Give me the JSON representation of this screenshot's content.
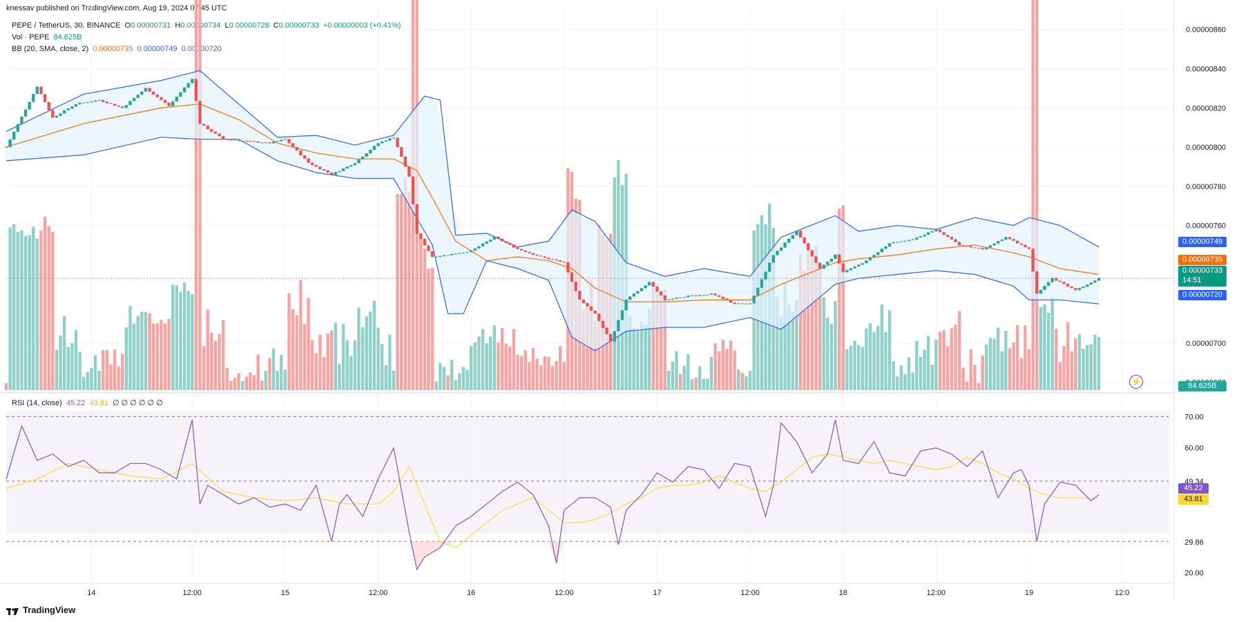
{
  "header": {
    "published": "knessav published on TradingView.com, Aug 19, 2024 07:45 UTC"
  },
  "legend": {
    "symbol": "PEPE / TetherUS, 30, BINANCE",
    "o_label": "O",
    "o_value": "0.00000731",
    "h_label": "H",
    "h_value": "0.00000734",
    "l_label": "L",
    "l_value": "0.00000728",
    "c_label": "C",
    "c_value": "0.00000733",
    "change": "+0.00000003 (+0.41%)",
    "vol_label": "Vol · PEPE",
    "vol_value": "84.625B",
    "bb_label": "BB (20, SMA, close, 2)",
    "bb_basis": "0.00000735",
    "bb_upper": "0.00000749",
    "bb_lower": "0.00000720",
    "rsi_label": "RSI (14, close)",
    "rsi_value": "45.22",
    "rsi_ma": "43.81",
    "rsi_extra": "∅ ∅ ∅ ∅ ∅ ∅"
  },
  "price_tags": {
    "upper": "0.00000749",
    "basis": "0.00000735",
    "last": "0.00000733",
    "countdown": "14:51",
    "lower": "0.00000720",
    "volume": "84.625B"
  },
  "rsi_tags": {
    "rsi": "45.22",
    "ma": "43.81"
  },
  "branding": {
    "logo_text": "TradingView"
  },
  "colors": {
    "up": "#26a69a",
    "down": "#ef5350",
    "bb_band": "#2962ff",
    "bb_basis": "#ff6d00",
    "bb_fill": "#e3f2fd",
    "rsi": "#7e57c2",
    "rsi_ma": "#fdd835",
    "vol_up": "#8fd0c8",
    "vol_down": "#f6a3a1"
  },
  "chart_data": [
    {
      "type": "candlestick",
      "title": "PEPE / TetherUS, 30, BINANCE",
      "y_axis_ticks": [
        "0.00000860",
        "0.00000840",
        "0.00000820",
        "0.00000800",
        "0.00000780",
        "0.00000760",
        "0.00000700",
        "0.00000680"
      ],
      "ylim": [
        6.76e-06,
        8.68e-06
      ],
      "x_axis_ticks": [
        "14",
        "12:00",
        "15",
        "12:00",
        "16",
        "12:00",
        "17",
        "12:00",
        "18",
        "12:00",
        "19",
        "12:0"
      ],
      "xlim": [
        0,
        300
      ],
      "x_tick_positions": [
        22,
        48,
        72,
        96,
        120,
        144,
        168,
        192,
        216,
        240,
        264,
        288
      ],
      "series": [
        {
          "name": "Price (close)",
          "x": [
            0,
            8,
            12,
            18,
            24,
            30,
            36,
            42,
            48,
            50,
            56,
            62,
            68,
            72,
            78,
            84,
            90,
            96,
            100,
            104,
            106,
            110,
            114,
            120,
            126,
            132,
            138,
            144,
            148,
            152,
            156,
            160,
            166,
            170,
            176,
            182,
            188,
            192,
            198,
            204,
            210,
            214,
            216,
            222,
            228,
            234,
            240,
            246,
            252,
            258,
            264,
            266,
            270,
            276,
            282
          ],
          "y": [
            8e-06,
            8.31e-06,
            8.15e-06,
            8.22e-06,
            8.24e-06,
            8.2e-06,
            8.3e-06,
            8.21e-06,
            8.35e-06,
            8.12e-06,
            8.04e-06,
            8.03e-06,
            8.02e-06,
            8.04e-06,
            7.92e-06,
            7.86e-06,
            7.92e-06,
            8.02e-06,
            8.05e-06,
            7.85e-06,
            7.56e-06,
            7.44e-06,
            7.45e-06,
            7.47e-06,
            7.54e-06,
            7.48e-06,
            7.44e-06,
            7.41e-06,
            7.22e-06,
            7.15e-06,
            7.01e-06,
            7.22e-06,
            7.31e-06,
            7.22e-06,
            7.24e-06,
            7.25e-06,
            7.2e-06,
            7.2e-06,
            7.45e-06,
            7.57e-06,
            7.38e-06,
            7.45e-06,
            7.36e-06,
            7.42e-06,
            7.51e-06,
            7.53e-06,
            7.58e-06,
            7.5e-06,
            7.48e-06,
            7.54e-06,
            7.48e-06,
            7.25e-06,
            7.33e-06,
            7.27e-06,
            7.33e-06
          ]
        },
        {
          "name": "BB upper",
          "x": [
            0,
            20,
            40,
            50,
            60,
            70,
            80,
            90,
            100,
            108,
            112,
            116,
            124,
            132,
            140,
            146,
            152,
            160,
            170,
            180,
            192,
            200,
            214,
            220,
            230,
            240,
            250,
            260,
            264,
            272,
            282
          ],
          "y": [
            8.08e-06,
            8.27e-06,
            8.34e-06,
            8.39e-06,
            8.22e-06,
            8.05e-06,
            8.06e-06,
            8.01e-06,
            8.06e-06,
            8.26e-06,
            8.24e-06,
            7.55e-06,
            7.56e-06,
            7.49e-06,
            7.52e-06,
            7.68e-06,
            7.62e-06,
            7.41e-06,
            7.34e-06,
            7.38e-06,
            7.34e-06,
            7.54e-06,
            7.65e-06,
            7.57e-06,
            7.6e-06,
            7.58e-06,
            7.64e-06,
            7.6e-06,
            7.64e-06,
            7.6e-06,
            7.49e-06
          ]
        },
        {
          "name": "BB basis",
          "x": [
            0,
            20,
            40,
            50,
            60,
            70,
            80,
            90,
            100,
            106,
            110,
            116,
            124,
            132,
            140,
            146,
            152,
            160,
            170,
            180,
            192,
            200,
            214,
            220,
            230,
            240,
            250,
            260,
            264,
            272,
            282
          ],
          "y": [
            8e-06,
            8.12e-06,
            8.2e-06,
            8.22e-06,
            8.14e-06,
            8.02e-06,
            7.97e-06,
            7.94e-06,
            7.94e-06,
            7.88e-06,
            7.74e-06,
            7.52e-06,
            7.42e-06,
            7.44e-06,
            7.42e-06,
            7.38e-06,
            7.28e-06,
            7.21e-06,
            7.21e-06,
            7.22e-06,
            7.22e-06,
            7.3e-06,
            7.41e-06,
            7.43e-06,
            7.45e-06,
            7.48e-06,
            7.5e-06,
            7.46e-06,
            7.44e-06,
            7.38e-06,
            7.35e-06
          ]
        },
        {
          "name": "BB lower",
          "x": [
            0,
            20,
            40,
            50,
            60,
            70,
            80,
            90,
            100,
            110,
            114,
            118,
            124,
            132,
            140,
            146,
            152,
            160,
            170,
            180,
            192,
            200,
            214,
            220,
            230,
            240,
            250,
            260,
            264,
            272,
            282
          ],
          "y": [
            7.93e-06,
            7.96e-06,
            8.05e-06,
            8.04e-06,
            8.04e-06,
            7.93e-06,
            7.87e-06,
            7.84e-06,
            7.84e-06,
            7.5e-06,
            7.15e-06,
            7.15e-06,
            7.42e-06,
            7.38e-06,
            7.32e-06,
            7.03e-06,
            6.96e-06,
            7.06e-06,
            7.08e-06,
            7.08e-06,
            7.13e-06,
            7.07e-06,
            7.3e-06,
            7.33e-06,
            7.35e-06,
            7.37e-06,
            7.35e-06,
            7.29e-06,
            7.22e-06,
            7.22e-06,
            7.2e-06
          ]
        }
      ],
      "volume": {
        "name": "Vol · PEPE",
        "last": "84.625B"
      }
    },
    {
      "type": "line",
      "title": "RSI (14, close)",
      "y_axis_ticks": [
        "70.00",
        "60.00",
        "49.34",
        "29.86",
        "20.00"
      ],
      "ylim": [
        17,
        73
      ],
      "overbought": 70,
      "oversold": 30,
      "series": [
        {
          "name": "RSI",
          "x": [
            0,
            4,
            8,
            12,
            16,
            20,
            24,
            28,
            32,
            36,
            40,
            44,
            48,
            50,
            52,
            56,
            60,
            64,
            68,
            72,
            76,
            80,
            84,
            86,
            88,
            92,
            96,
            100,
            104,
            106,
            108,
            112,
            116,
            120,
            124,
            128,
            132,
            136,
            140,
            142,
            144,
            148,
            152,
            156,
            158,
            160,
            164,
            168,
            172,
            176,
            180,
            184,
            188,
            192,
            196,
            198,
            200,
            204,
            208,
            212,
            214,
            216,
            220,
            224,
            228,
            232,
            236,
            240,
            244,
            248,
            252,
            256,
            260,
            262,
            264,
            266,
            268,
            272,
            276,
            280,
            282
          ],
          "y": [
            50,
            67,
            56,
            58,
            54,
            56,
            52,
            52,
            55,
            55,
            53,
            50,
            69,
            42,
            48,
            45,
            42,
            44,
            41,
            42,
            40,
            48,
            30,
            42,
            45,
            38,
            50,
            60,
            33,
            21,
            25,
            28,
            35,
            38,
            42,
            46,
            49,
            45,
            35,
            23,
            40,
            44,
            44,
            41,
            29,
            40,
            45,
            52,
            49,
            54,
            53,
            47,
            55,
            54,
            38,
            48,
            68,
            62,
            52,
            58,
            69,
            56,
            55,
            62,
            52,
            51,
            59,
            60,
            58,
            54,
            59,
            44,
            52,
            53,
            48,
            30,
            42,
            49,
            48,
            43,
            45
          ]
        },
        {
          "name": "RSI-based MA",
          "x": [
            0,
            8,
            16,
            24,
            32,
            40,
            48,
            56,
            64,
            72,
            80,
            88,
            96,
            100,
            104,
            108,
            112,
            116,
            120,
            124,
            128,
            132,
            136,
            140,
            144,
            148,
            152,
            156,
            160,
            164,
            168,
            172,
            176,
            180,
            184,
            188,
            192,
            196,
            200,
            204,
            208,
            212,
            216,
            220,
            224,
            228,
            232,
            236,
            240,
            244,
            248,
            252,
            256,
            260,
            264,
            268,
            272,
            276,
            280,
            282
          ],
          "y": [
            47,
            50,
            55,
            53,
            51,
            50,
            55,
            46,
            44,
            43,
            44,
            42,
            42,
            46,
            54,
            42,
            30,
            28,
            32,
            36,
            40,
            42,
            44,
            40,
            36,
            36,
            37,
            39,
            42,
            44,
            47,
            48,
            48,
            49,
            51,
            49,
            47,
            46,
            49,
            53,
            57,
            58,
            57,
            56,
            55,
            56,
            55,
            54,
            53,
            54,
            57,
            55,
            52,
            50,
            47,
            45,
            44,
            44,
            43.8,
            43.8
          ]
        }
      ]
    }
  ]
}
